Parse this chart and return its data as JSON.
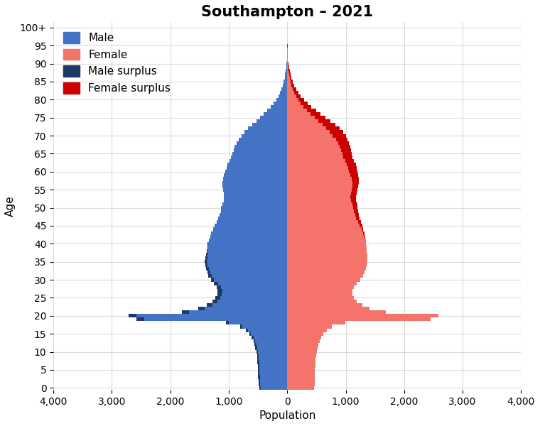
{
  "title": "Southampton – 2021",
  "xlabel": "Population",
  "ylabel": "Age",
  "xlim": [
    -4000,
    4000
  ],
  "xticks": [
    -4000,
    -3000,
    -2000,
    -1000,
    0,
    1000,
    2000,
    3000,
    4000
  ],
  "xticklabels": [
    "4,000",
    "3,000",
    "2,000",
    "1,000",
    "0",
    "1,000",
    "2,000",
    "3,000",
    "4,000"
  ],
  "ylim": [
    -0.5,
    101.5
  ],
  "yticks": [
    0,
    5,
    10,
    15,
    20,
    25,
    30,
    35,
    40,
    45,
    50,
    55,
    60,
    65,
    70,
    75,
    80,
    85,
    90,
    95,
    100
  ],
  "yticklabels": [
    "0",
    "5",
    "10",
    "15",
    "20",
    "25",
    "30",
    "35",
    "40",
    "45",
    "50",
    "55",
    "60",
    "65",
    "70",
    "75",
    "80",
    "85",
    "90",
    "95",
    "100+"
  ],
  "color_male": "#4472C4",
  "color_female": "#F4736A",
  "color_male_surplus": "#1F3864",
  "color_female_surplus": "#CC0000",
  "background_color": "#FFFFFF",
  "grid_color": "#CCCCCC",
  "title_fontsize": 15,
  "label_fontsize": 11,
  "tick_fontsize": 10,
  "male": [
    480,
    490,
    495,
    498,
    500,
    505,
    508,
    510,
    515,
    520,
    530,
    545,
    560,
    580,
    610,
    650,
    710,
    810,
    1050,
    2580,
    2720,
    1800,
    1520,
    1380,
    1280,
    1230,
    1200,
    1190,
    1210,
    1250,
    1310,
    1350,
    1370,
    1390,
    1400,
    1410,
    1400,
    1390,
    1380,
    1370,
    1360,
    1340,
    1320,
    1300,
    1270,
    1240,
    1210,
    1180,
    1160,
    1140,
    1130,
    1110,
    1090,
    1080,
    1090,
    1100,
    1110,
    1110,
    1100,
    1080,
    1060,
    1040,
    1020,
    990,
    960,
    940,
    920,
    900,
    870,
    830,
    780,
    730,
    670,
    600,
    530,
    470,
    400,
    340,
    280,
    230,
    185,
    150,
    120,
    95,
    75,
    60,
    45,
    34,
    25,
    18,
    13,
    9,
    6,
    4,
    3,
    2,
    2,
    1,
    1,
    0,
    0
  ],
  "female": [
    455,
    465,
    468,
    470,
    472,
    476,
    479,
    481,
    486,
    492,
    502,
    516,
    531,
    550,
    580,
    618,
    674,
    768,
    995,
    2450,
    2580,
    1680,
    1410,
    1280,
    1190,
    1145,
    1120,
    1115,
    1140,
    1185,
    1250,
    1295,
    1320,
    1345,
    1360,
    1375,
    1370,
    1365,
    1360,
    1355,
    1350,
    1340,
    1330,
    1320,
    1300,
    1280,
    1260,
    1240,
    1225,
    1210,
    1205,
    1195,
    1180,
    1175,
    1185,
    1200,
    1215,
    1225,
    1225,
    1215,
    1200,
    1185,
    1170,
    1145,
    1120,
    1100,
    1085,
    1075,
    1060,
    1035,
    1000,
    955,
    895,
    820,
    735,
    655,
    570,
    490,
    415,
    348,
    285,
    233,
    188,
    152,
    121,
    97,
    74,
    56,
    41,
    29,
    21,
    14,
    9,
    6,
    4,
    3,
    2,
    2,
    1,
    0,
    0
  ]
}
